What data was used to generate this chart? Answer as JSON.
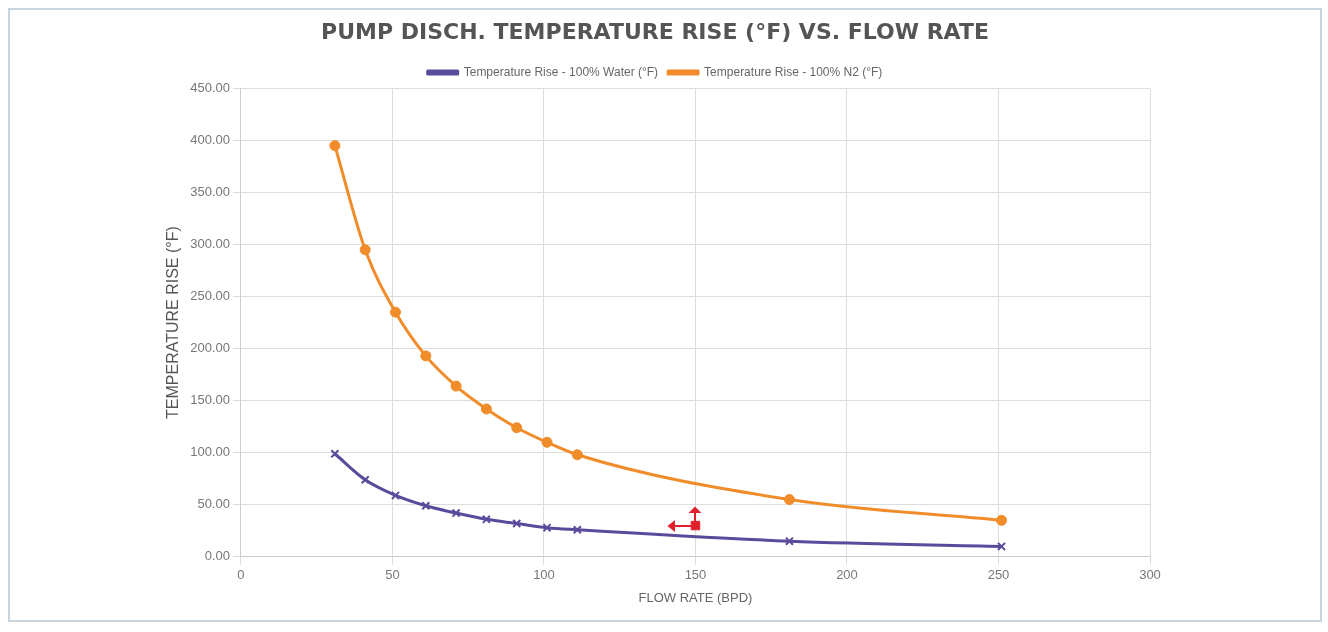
{
  "chart_data": {
    "type": "line",
    "title": "PUMP DISCH. TEMPERATURE RISE (°F) VS. FLOW RATE",
    "xlabel": "FLOW RATE (BPD)",
    "ylabel": "TEMPERATURE RISE (°F)",
    "x": [
      31,
      41,
      51,
      61,
      71,
      81,
      91,
      101,
      111,
      181,
      251
    ],
    "series": [
      {
        "name": "Temperature Rise - 100% Water (°F)",
        "color": "#5b4a9b",
        "marker": "cross",
        "values": [
          99,
          74,
          59,
          49,
          42,
          36,
          32,
          28,
          26,
          15,
          10
        ]
      },
      {
        "name": "Temperature Rise - 100% N2 (°F)",
        "color": "#f08c2a",
        "marker": "circle",
        "values": [
          395,
          295,
          235,
          193,
          164,
          142,
          124,
          110,
          98,
          55,
          35
        ]
      },
      {
        "type": "scatter",
        "color": "#e0202a",
        "marker": "square",
        "x": [
          150
        ],
        "values": [
          30
        ]
      }
    ],
    "xlim": [
      0,
      300
    ],
    "xticks": [
      0,
      50,
      100,
      150,
      200,
      250,
      300
    ],
    "ylim": [
      0,
      450
    ],
    "yticks": [
      {
        "value": 0,
        "label": "0.00"
      },
      {
        "value": 50,
        "label": "50.00"
      },
      {
        "value": 100,
        "label": "100.00"
      },
      {
        "value": 150,
        "label": "150.00"
      },
      {
        "value": 200,
        "label": "200.00"
      },
      {
        "value": 250,
        "label": "250.00"
      },
      {
        "value": 300,
        "label": "300.00"
      },
      {
        "value": 350,
        "label": "350.00"
      },
      {
        "value": 400,
        "label": "400.00"
      },
      {
        "value": 450,
        "label": "450.00"
      }
    ],
    "grid": true,
    "legend": "top"
  }
}
